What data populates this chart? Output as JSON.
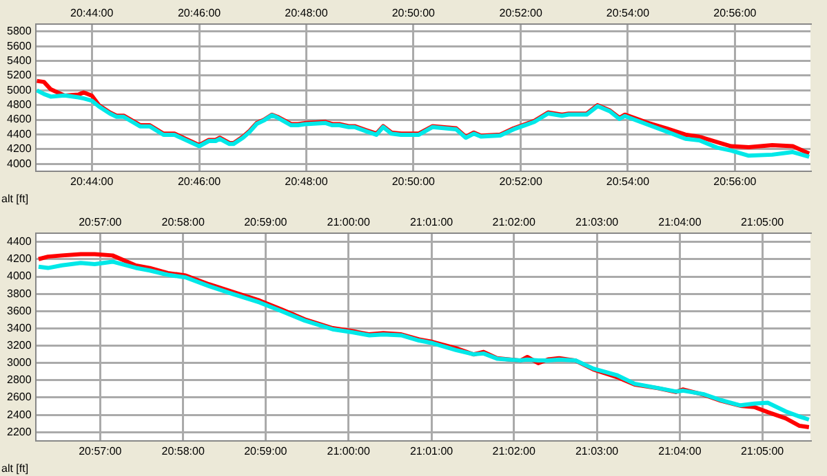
{
  "chart_data": [
    {
      "type": "line",
      "ylabel": "alt [ft]",
      "grid": true,
      "legend": false,
      "marker": "none",
      "line_style": "solid",
      "xlim": [
        20.7158,
        20.9568
      ],
      "x2lim": [
        20.7158,
        20.9568
      ],
      "xticks": [
        {
          "value": 20.7333,
          "label": "20:44:00"
        },
        {
          "value": 20.7667,
          "label": "20:46:00"
        },
        {
          "value": 20.8,
          "label": "20:48:00"
        },
        {
          "value": 20.8333,
          "label": "20:50:00"
        },
        {
          "value": 20.8667,
          "label": "20:52:00"
        },
        {
          "value": 20.9,
          "label": "20:54:00"
        },
        {
          "value": 20.9333,
          "label": "20:56:00"
        }
      ],
      "x2ticks": [
        {
          "value": 20.7333,
          "label": "20:44:00"
        },
        {
          "value": 20.7667,
          "label": "20:46:00"
        },
        {
          "value": 20.8,
          "label": "20:48:00"
        },
        {
          "value": 20.8333,
          "label": "20:50:00"
        },
        {
          "value": 20.8667,
          "label": "20:52:00"
        },
        {
          "value": 20.9,
          "label": "20:54:00"
        },
        {
          "value": 20.9333,
          "label": "20:56:00"
        }
      ],
      "ylim": [
        3900,
        5900
      ],
      "yticks": [
        4000,
        4200,
        4400,
        4600,
        4800,
        5000,
        5200,
        5400,
        5600,
        5800
      ],
      "x": [
        20.7162,
        20.7184,
        20.7205,
        20.7248,
        20.7291,
        20.7308,
        20.7333,
        20.7355,
        20.7389,
        20.741,
        20.7432,
        20.7483,
        20.7513,
        20.7556,
        20.759,
        20.7624,
        20.7667,
        20.7697,
        20.7718,
        20.7731,
        20.7761,
        20.7774,
        20.7803,
        20.7825,
        20.7846,
        20.7868,
        20.7893,
        20.791,
        20.7953,
        20.7974,
        20.7996,
        20.806,
        20.8081,
        20.8103,
        20.8132,
        20.815,
        20.8188,
        20.8218,
        20.8239,
        20.8265,
        20.8295,
        20.835,
        20.8393,
        20.8466,
        20.8496,
        20.8521,
        20.8543,
        20.8603,
        20.8645,
        20.8709,
        20.8752,
        20.8795,
        20.8816,
        20.8872,
        20.8906,
        20.8944,
        20.8974,
        20.8991,
        20.9064,
        20.912,
        20.9179,
        20.9222,
        20.9278,
        20.9321,
        20.9376,
        20.9449,
        20.9513,
        20.9564
      ],
      "series": [
        {
          "color": "#00e8e8",
          "values": [
            4999,
            4950,
            4915,
            4930,
            4905,
            4890,
            4860,
            4780,
            4685,
            4640,
            4640,
            4510,
            4510,
            4395,
            4395,
            4325,
            4240,
            4310,
            4310,
            4340,
            4270,
            4270,
            4355,
            4440,
            4545,
            4590,
            4660,
            4630,
            4525,
            4525,
            4540,
            4555,
            4525,
            4525,
            4500,
            4500,
            4440,
            4395,
            4500,
            4410,
            4395,
            4395,
            4500,
            4470,
            4355,
            4410,
            4370,
            4385,
            4470,
            4570,
            4685,
            4655,
            4670,
            4670,
            4785,
            4715,
            4610,
            4650,
            4530,
            4440,
            4340,
            4320,
            4220,
            4180,
            4110,
            4124,
            4160,
            4096
          ]
        },
        {
          "color": "#ff0000",
          "values": [
            5128,
            5114,
            5014,
            4928,
            4942,
            4971,
            4928,
            4798,
            4698,
            4655,
            4655,
            4526,
            4526,
            4411,
            4411,
            4340,
            4254,
            4325,
            4325,
            4355,
            4283,
            4283,
            4368,
            4454,
            4555,
            4598,
            4669,
            4640,
            4540,
            4540,
            4555,
            4569,
            4540,
            4540,
            4512,
            4512,
            4454,
            4411,
            4512,
            4425,
            4411,
            4411,
            4512,
            4483,
            4368,
            4425,
            4382,
            4397,
            4483,
            4583,
            4698,
            4669,
            4683,
            4683,
            4798,
            4726,
            4626,
            4669,
            4555,
            4483,
            4397,
            4368,
            4296,
            4239,
            4225,
            4254,
            4239,
            4139
          ]
        }
      ]
    },
    {
      "type": "line",
      "ylabel": "alt [ft]",
      "grid": true,
      "legend": false,
      "marker": "none",
      "line_style": "solid",
      "xlim": [
        20.937,
        21.093
      ],
      "x2lim": [
        20.937,
        21.093
      ],
      "xticks": [
        {
          "value": 20.95,
          "label": "20:57:00"
        },
        {
          "value": 20.9667,
          "label": "20:58:00"
        },
        {
          "value": 20.9833,
          "label": "20:59:00"
        },
        {
          "value": 21.0,
          "label": "21:00:00"
        },
        {
          "value": 21.0167,
          "label": "21:01:00"
        },
        {
          "value": 21.0333,
          "label": "21:02:00"
        },
        {
          "value": 21.05,
          "label": "21:03:00"
        },
        {
          "value": 21.0667,
          "label": "21:04:00"
        },
        {
          "value": 21.0833,
          "label": "21:05:00"
        }
      ],
      "x2ticks": [
        {
          "value": 20.95,
          "label": "20:57:00"
        },
        {
          "value": 20.9667,
          "label": "20:58:00"
        },
        {
          "value": 20.9833,
          "label": "20:59:00"
        },
        {
          "value": 21.0,
          "label": "21:00:00"
        },
        {
          "value": 21.0167,
          "label": "21:01:00"
        },
        {
          "value": 21.0333,
          "label": "21:02:00"
        },
        {
          "value": 21.05,
          "label": "21:03:00"
        },
        {
          "value": 21.0667,
          "label": "21:04:00"
        },
        {
          "value": 21.0833,
          "label": "21:05:00"
        }
      ],
      "ylim": [
        2100,
        4500
      ],
      "yticks": [
        2200,
        2400,
        2600,
        2800,
        3000,
        3200,
        3400,
        3600,
        3800,
        4000,
        4200,
        4400
      ],
      "x": [
        20.9376,
        20.9395,
        20.9423,
        20.9461,
        20.9489,
        20.9525,
        20.9572,
        20.96,
        20.9636,
        20.9672,
        20.9719,
        20.9766,
        20.9821,
        20.9865,
        20.9912,
        20.9968,
        21.0003,
        21.0042,
        21.007,
        21.0106,
        21.0142,
        21.0169,
        21.0216,
        21.0252,
        21.0272,
        21.0299,
        21.0346,
        21.036,
        21.0382,
        21.0402,
        21.0424,
        21.0457,
        21.0493,
        21.054,
        21.0576,
        21.0623,
        21.0659,
        21.0673,
        21.0714,
        21.075,
        21.0789,
        21.0817,
        21.0844,
        21.088,
        21.0908,
        21.0927
      ],
      "series": [
        {
          "color": "#00e8e8",
          "values": [
            4114,
            4099,
            4130,
            4157,
            4143,
            4172,
            4100,
            4070,
            4020,
            3990,
            3890,
            3800,
            3700,
            3600,
            3490,
            3390,
            3360,
            3320,
            3330,
            3320,
            3260,
            3230,
            3150,
            3100,
            3110,
            3050,
            3030,
            3040,
            3030,
            3030,
            3040,
            3030,
            2935,
            2860,
            2760,
            2710,
            2670,
            2680,
            2640,
            2570,
            2510,
            2530,
            2540,
            2440,
            2380,
            2345
          ]
        },
        {
          "color": "#ff0000",
          "values": [
            4201,
            4230,
            4244,
            4259,
            4259,
            4244,
            4128,
            4099,
            4041,
            4012,
            3911,
            3824,
            3722,
            3621,
            3505,
            3403,
            3374,
            3331,
            3345,
            3331,
            3273,
            3244,
            3172,
            3099,
            3128,
            3056,
            3027,
            3070,
            2998,
            3041,
            3056,
            3027,
            2925,
            2838,
            2751,
            2708,
            2664,
            2693,
            2635,
            2563,
            2505,
            2490,
            2432,
            2360,
            2273,
            2258
          ]
        }
      ]
    }
  ]
}
